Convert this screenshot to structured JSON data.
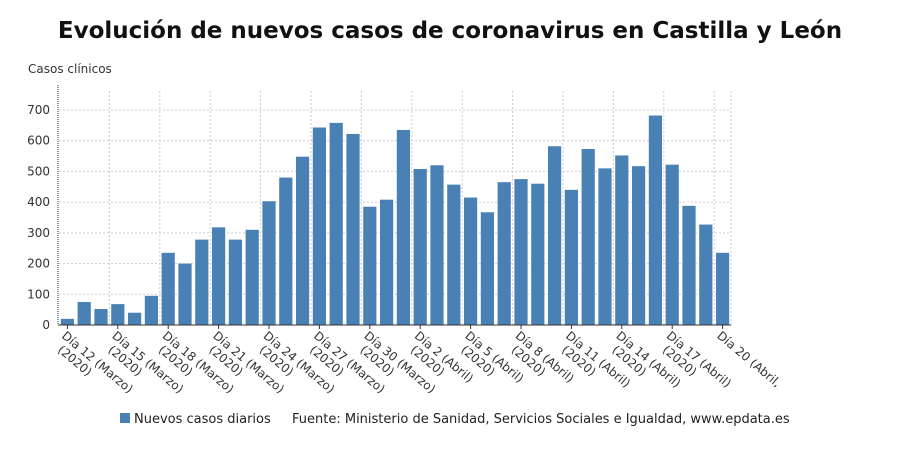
{
  "chart_data": {
    "type": "bar",
    "title": "Evolución de nuevos casos de coronavirus en Castilla y León",
    "ylabel": "Casos clínicos",
    "ylim": [
      0,
      750
    ],
    "yticks": [
      0,
      100,
      200,
      300,
      400,
      500,
      600,
      700
    ],
    "grid": true,
    "color": "#4a81b4",
    "legend_position": "bottom",
    "source": "Fuente: Ministerio de Sanidad, Servicios Sociales e Igualdad, www.epdata.es",
    "series": [
      {
        "name": "Nuevos casos diarios",
        "values": [
          20,
          75,
          52,
          68,
          40,
          95,
          235,
          200,
          278,
          318,
          278,
          310,
          403,
          480,
          548,
          643,
          658,
          622,
          385,
          408,
          635,
          508,
          520,
          457,
          415,
          367,
          465,
          475,
          460,
          582,
          440,
          573,
          510,
          552,
          517,
          682,
          522,
          388,
          327,
          235
        ]
      }
    ],
    "xtick_labels": [
      {
        "index": 0,
        "line1": "Día 12 (Marzo)",
        "line2": "(2020)"
      },
      {
        "index": 3,
        "line1": "Día 15 (Marzo)",
        "line2": "(2020)"
      },
      {
        "index": 6,
        "line1": "Día 18 (Marzo)",
        "line2": "(2020)"
      },
      {
        "index": 9,
        "line1": "Día 21 (Marzo)",
        "line2": "(2020)"
      },
      {
        "index": 12,
        "line1": "Día 24 (Marzo)",
        "line2": "(2020)"
      },
      {
        "index": 15,
        "line1": "Día 27 (Marzo)",
        "line2": "(2020)"
      },
      {
        "index": 18,
        "line1": "Día 30 (Marzo)",
        "line2": "(2020)"
      },
      {
        "index": 21,
        "line1": "Día 2 (Abril)",
        "line2": "(2020)"
      },
      {
        "index": 24,
        "line1": "Día 5 (Abril)",
        "line2": "(2020)"
      },
      {
        "index": 27,
        "line1": "Día 8 (Abril)",
        "line2": "(2020)"
      },
      {
        "index": 30,
        "line1": "Día 11 (Abril)",
        "line2": "(2020)"
      },
      {
        "index": 33,
        "line1": "Día 14 (Abril)",
        "line2": "(2020)"
      },
      {
        "index": 36,
        "line1": "Día 17 (Abril)",
        "line2": "(2020)"
      },
      {
        "index": 39,
        "line1": "Día 20 (Abril,",
        "line2": ""
      }
    ]
  }
}
